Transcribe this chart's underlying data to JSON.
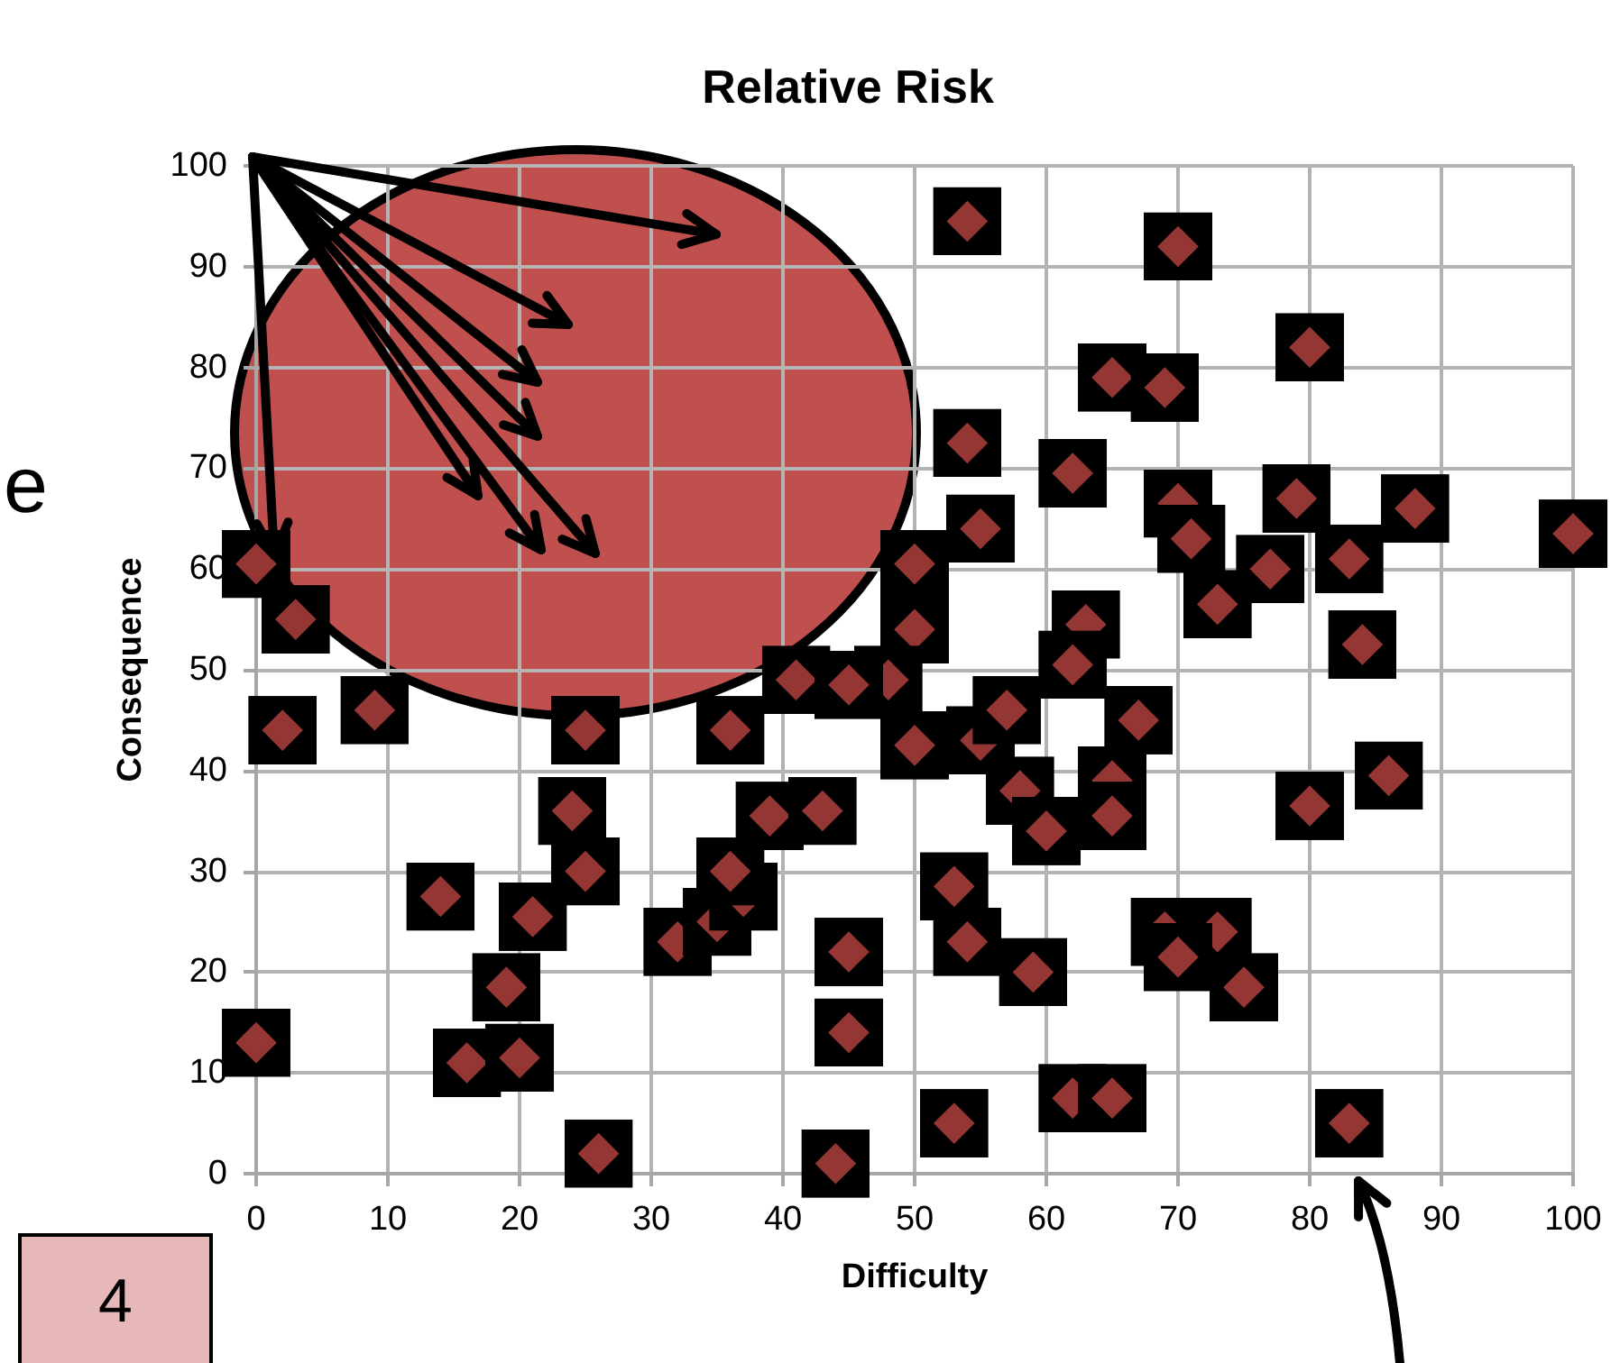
{
  "chart_data": {
    "type": "scatter",
    "title": "Relative Risk",
    "xlabel": "Difficulty",
    "ylabel": "Consequence",
    "annotations": [
      "e",
      "4"
    ],
    "x": [
      0,
      2,
      9,
      14,
      19,
      16,
      20,
      21,
      26,
      24,
      25,
      25,
      32,
      35,
      37,
      36,
      39,
      43,
      36,
      45,
      45,
      44,
      53,
      50,
      0,
      3,
      50,
      50,
      48,
      41,
      45,
      54,
      70,
      80,
      65,
      69,
      54,
      62,
      55,
      70,
      71,
      79,
      88,
      100,
      77,
      83,
      73,
      84,
      63,
      62,
      55,
      57,
      67,
      65,
      58,
      60,
      65,
      80,
      86,
      53,
      54,
      59,
      69,
      73,
      70,
      75,
      62,
      65,
      83
    ],
    "series": [
      {
        "color": "#943634",
        "values": [
          13,
          44,
          46,
          27.5,
          18.5,
          11,
          11.5,
          25.5,
          2,
          36,
          30,
          44,
          23,
          25,
          27.5,
          30,
          35.5,
          36,
          44,
          22,
          14,
          1,
          5,
          42.5,
          60.5,
          55,
          60.5,
          54,
          49,
          49,
          48.5,
          94.5,
          92,
          82,
          79,
          78,
          72.5,
          69.5,
          64,
          66.5,
          63,
          67,
          66,
          63.5,
          60,
          61,
          56.5,
          52.5,
          54.5,
          50.5,
          43,
          46,
          45,
          39,
          38,
          34,
          35.5,
          36.5,
          39.5,
          28.5,
          23,
          20,
          24,
          24,
          21.5,
          18.5,
          7.5,
          7.5,
          5
        ]
      }
    ],
    "xlim": [
      0,
      100
    ],
    "ylim": [
      0,
      100
    ],
    "xticks": [
      0,
      10,
      20,
      30,
      40,
      50,
      60,
      70,
      80,
      90,
      100
    ],
    "yticks": [
      0,
      10,
      20,
      30,
      40,
      50,
      60,
      70,
      80,
      90,
      100
    ],
    "grid": true,
    "marker": "square"
  }
}
